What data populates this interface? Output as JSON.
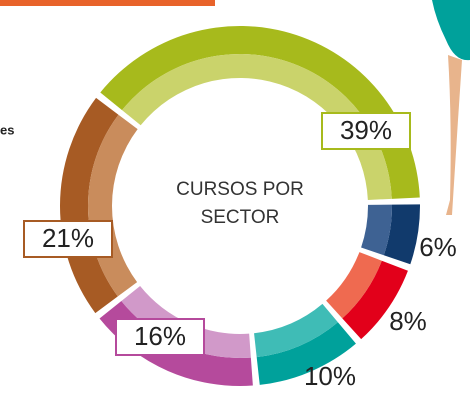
{
  "chart_data": {
    "type": "donut",
    "title": "CURSOS POR SECTOR",
    "side_text": "es",
    "values": [
      39,
      6,
      8,
      10,
      16,
      21
    ],
    "value_labels": [
      "39%",
      "6%",
      "8%",
      "10%",
      "16%",
      "21%"
    ],
    "colors": [
      "#a7ba1c",
      "#113a6c",
      "#e2001a",
      "#00a19b",
      "#b54a9c",
      "#a75b24"
    ],
    "inner_colors": [
      "#cad36b",
      "#3e6293",
      "#ef6a50",
      "#3fbcb6",
      "#d199c9",
      "#c98c5c"
    ]
  }
}
